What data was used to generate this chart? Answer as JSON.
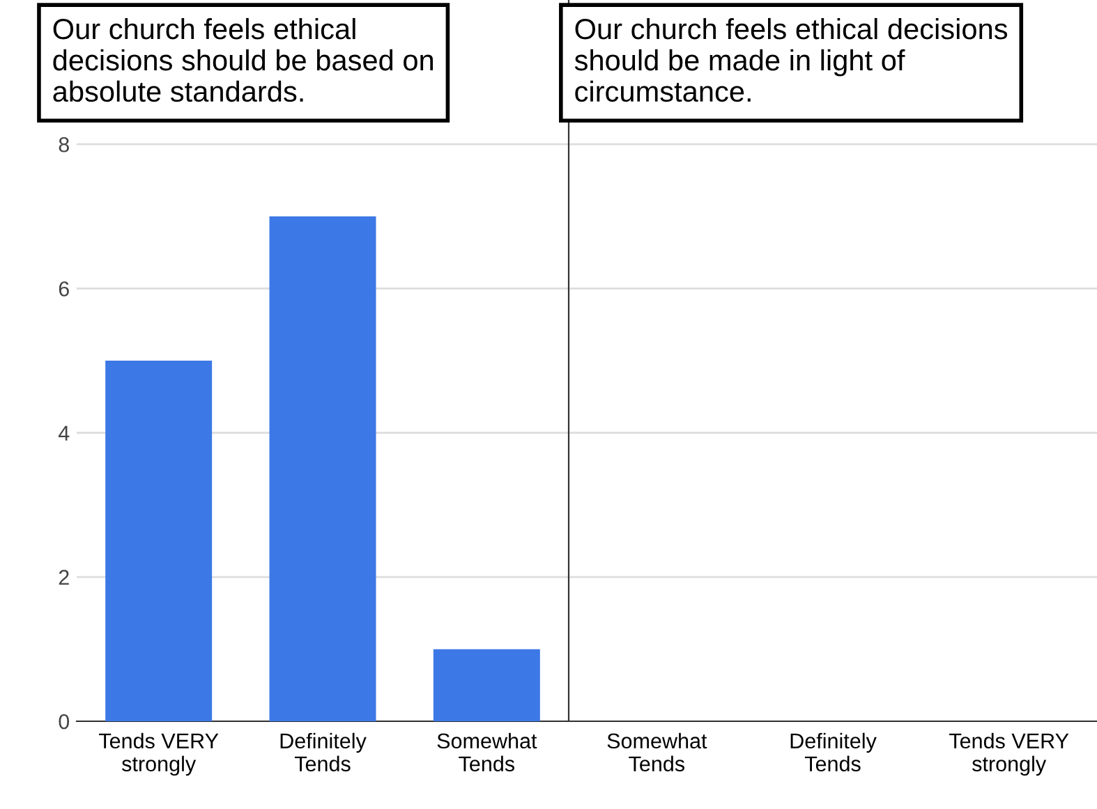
{
  "chart_data": [
    {
      "type": "bar",
      "annotations": [
        "Our church feels ethical\ndecisions should be based on\nabsolute standards."
      ],
      "categories": [
        "Tends VERY\nstrongly",
        "Definitely\nTends",
        "Somewhat\nTends"
      ],
      "values": [
        5,
        7,
        1
      ],
      "color": "#3c78e6",
      "ylim": [
        0,
        10
      ],
      "yticks": [
        0,
        2,
        4,
        6,
        8
      ],
      "grid": "y"
    },
    {
      "type": "bar",
      "annotations": [
        "Our church feels ethical decisions\nshould be made in light of\ncircumstance."
      ],
      "categories": [
        "Somewhat\nTends",
        "Definitely\nTends",
        "Tends VERY\nstrongly"
      ],
      "values": [
        0,
        0,
        0
      ],
      "color": "#3c78e6",
      "ylim": [
        0,
        10
      ],
      "yticks": [
        0,
        2,
        4,
        6,
        8
      ],
      "grid": "y",
      "tick_labels": "x"
    }
  ]
}
